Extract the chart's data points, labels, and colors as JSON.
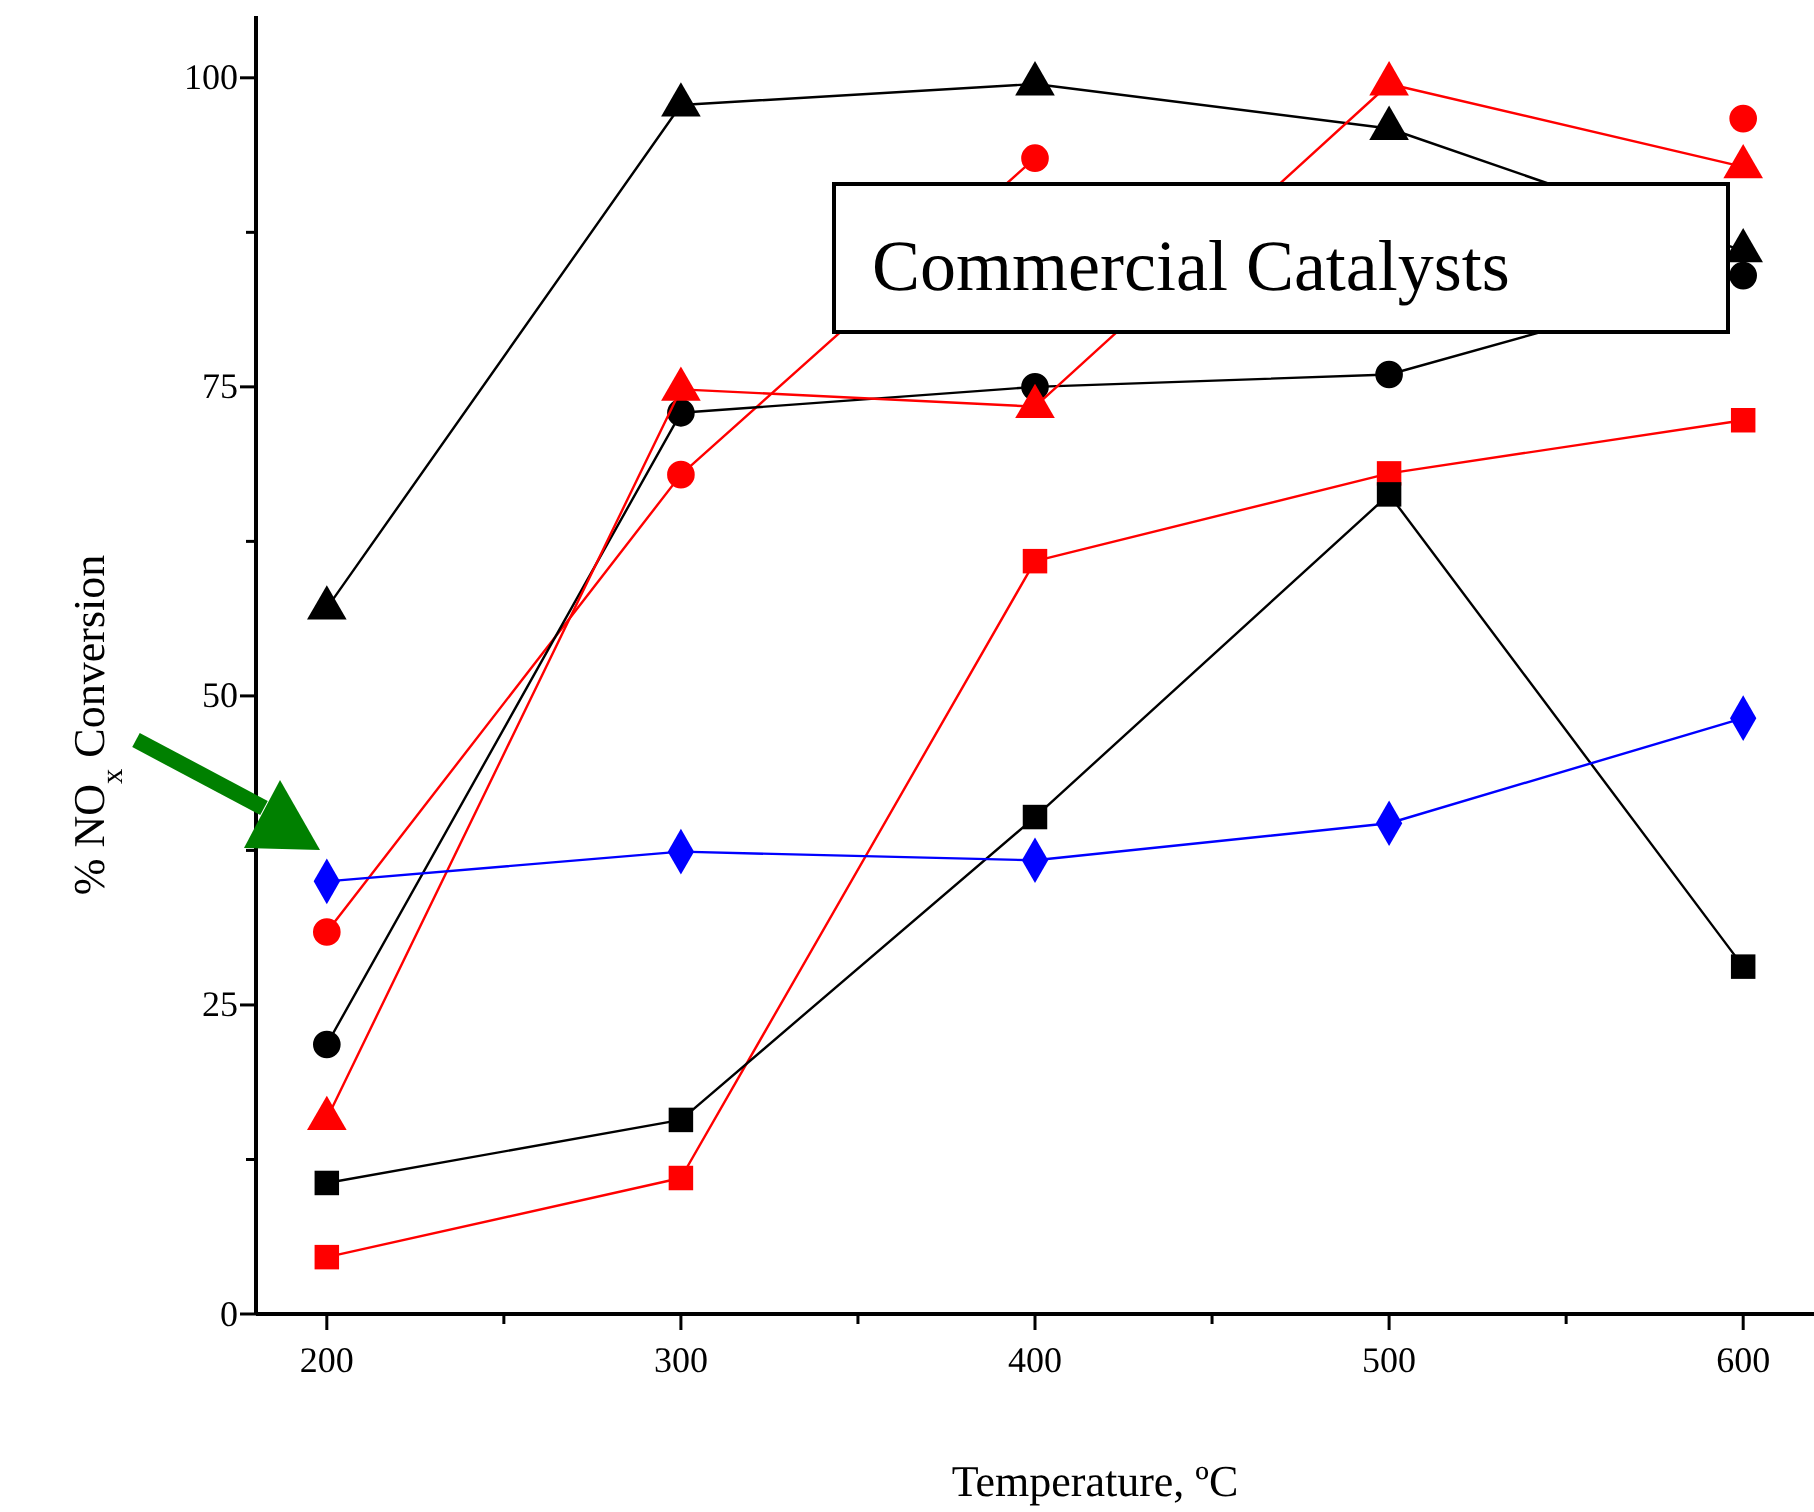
{
  "chart_data": {
    "type": "line",
    "xlabel": "Temperature, ºC",
    "ylabel": "% NO$_{x}$ Conversion",
    "x": [
      200,
      300,
      400,
      500,
      600
    ],
    "xlim": [
      180,
      620
    ],
    "xticks": [
      200,
      {
        "value": 250,
        "label": null
      },
      300,
      {
        "value": 350,
        "label": null
      },
      400,
      {
        "value": 450,
        "label": null
      },
      500,
      {
        "value": 550,
        "label": null
      },
      600
    ],
    "ylim": [
      0,
      105
    ],
    "yticks": [
      0,
      {
        "value": 12.5,
        "label": null
      },
      25,
      {
        "value": 37.5,
        "label": null
      },
      50,
      {
        "value": 62.5,
        "label": null
      },
      75,
      {
        "value": 87.5,
        "label": null
      },
      100
    ],
    "grid": false,
    "annotations": [
      "Commercial Catalysts"
    ],
    "series": [
      {
        "color": "#000000",
        "marker": "triangle",
        "values": [
          57.1,
          97.8,
          99.5,
          95.9,
          86.0
        ]
      },
      {
        "color": "#ff0000",
        "marker": "circle",
        "values": [
          30.9,
          67.9,
          93.5,
          null,
          96.7
        ]
      },
      {
        "color": "#000000",
        "marker": "circle",
        "values": [
          21.8,
          72.9,
          75.0,
          76.0,
          84.0
        ]
      },
      {
        "color": "#ff0000",
        "marker": "triangle",
        "values": [
          15.8,
          74.8,
          73.4,
          99.5,
          92.8
        ]
      },
      {
        "color": "#ff0000",
        "marker": "square",
        "values": [
          4.6,
          11.0,
          60.9,
          68.0,
          72.3
        ]
      },
      {
        "color": "#000000",
        "marker": "square",
        "values": [
          10.6,
          15.7,
          40.2,
          66.3,
          28.1
        ]
      },
      {
        "color": "#0000ff",
        "marker": "diamond",
        "values": [
          35.0,
          37.4,
          36.7,
          39.7,
          48.2
        ]
      }
    ]
  }
}
